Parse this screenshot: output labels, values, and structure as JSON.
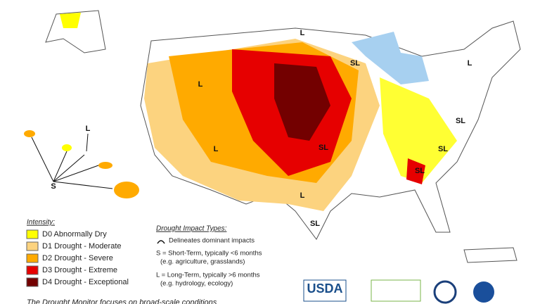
{
  "legend": {
    "title": "Intensity:",
    "items": [
      {
        "label": "D0 Abnormally Dry",
        "color": "#ffff00"
      },
      {
        "label": "D1 Drought - Moderate",
        "color": "#fcd37f"
      },
      {
        "label": "D2 Drought - Severe",
        "color": "#ffaa00"
      },
      {
        "label": "D3 Drought - Extreme",
        "color": "#e60000"
      },
      {
        "label": "D4 Drought - Exceptional",
        "color": "#730000"
      }
    ]
  },
  "impact_types": {
    "title": "Drought Impact Types:",
    "lines": [
      "Delineates dominant impacts",
      "S = Short-Term, typically <6 months",
      "(e.g. agriculture, grasslands)",
      "L = Long-Term, typically >6 months",
      "(e.g. hydrology, ecology)"
    ]
  },
  "map_labels": [
    "L",
    "SL",
    "L",
    "SL",
    "L",
    "SL",
    "SL",
    "SL",
    "L",
    "SL",
    "L",
    "S",
    "L"
  ],
  "logos": {
    "usda": "USDA"
  },
  "footer": "The Drought Monitor focuses on broad-scale conditions"
}
